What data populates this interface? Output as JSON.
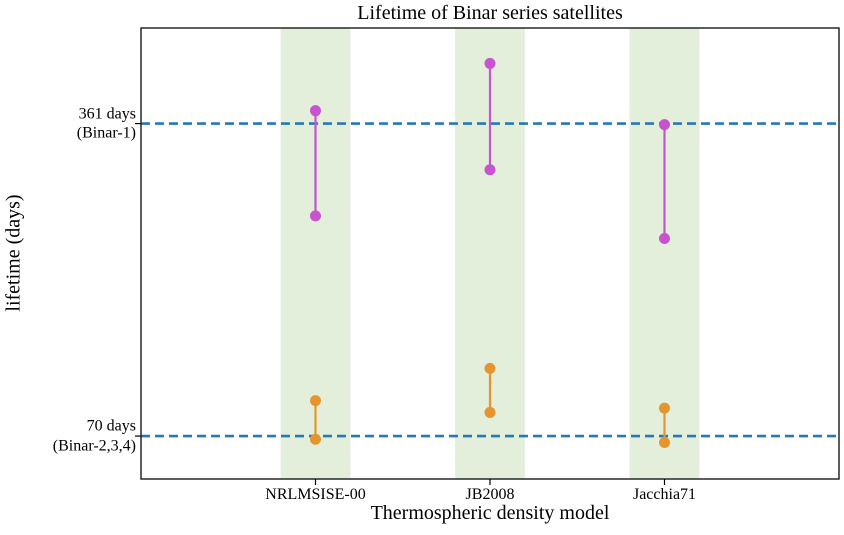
{
  "chart_data": {
    "type": "scatter",
    "title": "Lifetime of Binar series satellites",
    "xlabel": "Thermospheric density model",
    "ylabel": "lifetime (days)",
    "categories": [
      "NRLMSISE-00",
      "JB2008",
      "Jacchia71"
    ],
    "ylim": [
      30,
      450
    ],
    "xlim": [
      -1,
      3
    ],
    "grid": false,
    "legend": "none",
    "band": {
      "color": "#e3efdb",
      "half_width": 0.2
    },
    "reference_lines": [
      {
        "value": 361,
        "label": [
          "361 days",
          "(Binar-1)"
        ],
        "color": "#2878b5",
        "style": "dashed"
      },
      {
        "value": 70,
        "label": [
          "70 days",
          "(Binar-2,3,4)"
        ],
        "color": "#2878b5",
        "style": "dashed"
      }
    ],
    "series": [
      {
        "name": "Binar-1",
        "color": "#c853cf",
        "marker": "circle",
        "ranges": [
          {
            "category": "NRLMSISE-00",
            "low": 275,
            "high": 373
          },
          {
            "category": "JB2008",
            "low": 318,
            "high": 417
          },
          {
            "category": "Jacchia71",
            "low": 254,
            "high": 360
          }
        ]
      },
      {
        "name": "Binar-2,3,4",
        "color": "#e5952d",
        "marker": "circle",
        "ranges": [
          {
            "category": "NRLMSISE-00",
            "low": 67,
            "high": 103
          },
          {
            "category": "JB2008",
            "low": 92,
            "high": 133
          },
          {
            "category": "Jacchia71",
            "low": 64,
            "high": 96
          }
        ]
      }
    ]
  }
}
